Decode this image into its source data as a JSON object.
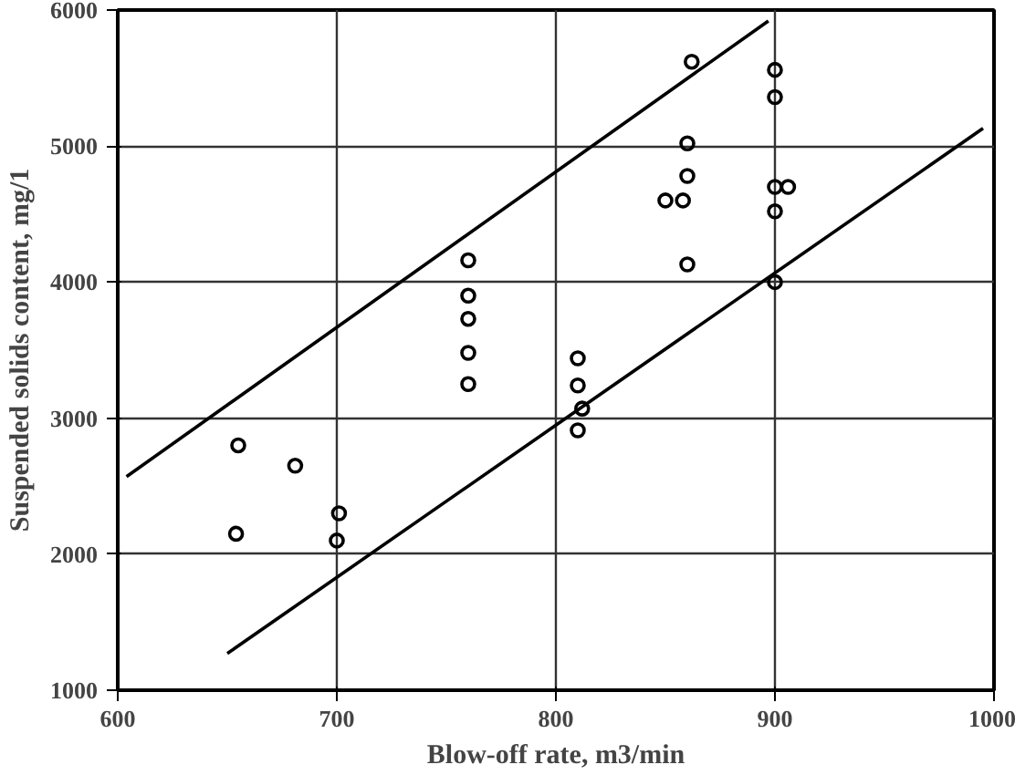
{
  "chart_data": {
    "type": "scatter",
    "xlabel": "Blow-off rate, m3/min",
    "ylabel": "Suspended solids content, mg/1",
    "xlim": [
      600,
      1000
    ],
    "ylim": [
      1000,
      6000
    ],
    "xticks": [
      600,
      700,
      800,
      900,
      1000
    ],
    "yticks": [
      1000,
      2000,
      3000,
      4000,
      5000,
      6000
    ],
    "grid": true,
    "series": [
      {
        "marker": "circle",
        "color": "#000000",
        "x": [
          655,
          681,
          654,
          701,
          700,
          760,
          760,
          760,
          760,
          760,
          810,
          810,
          812,
          810,
          862,
          860,
          860,
          850,
          858,
          860,
          900,
          900,
          900,
          906,
          900,
          900
        ],
        "values": [
          2800,
          2650,
          2150,
          2300,
          2100,
          4160,
          3900,
          3730,
          3480,
          3250,
          3440,
          3240,
          3070,
          2910,
          5620,
          5020,
          4780,
          4600,
          4600,
          4130,
          5560,
          5360,
          4700,
          4700,
          4520,
          4000
        ]
      },
      {
        "type": "line",
        "marker": "none",
        "color": "#000000",
        "x": [
          604,
          897
        ],
        "values": [
          2570,
          5920
        ]
      },
      {
        "type": "line",
        "marker": "none",
        "color": "#000000",
        "x": [
          650,
          995
        ],
        "values": [
          1270,
          5130
        ]
      }
    ]
  }
}
